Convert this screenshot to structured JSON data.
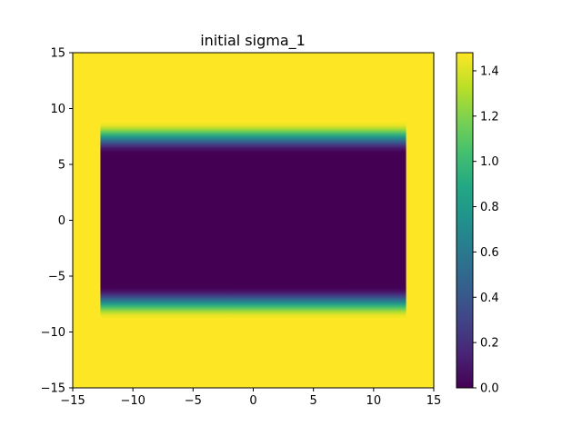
{
  "chart_data": {
    "type": "heatmap",
    "title": "initial sigma_1",
    "xlabel": "",
    "ylabel": "",
    "xlim": [
      -15,
      15
    ],
    "ylim": [
      -15,
      15
    ],
    "xticks": [
      -15,
      -10,
      -5,
      0,
      5,
      10,
      15
    ],
    "yticks": [
      -15,
      -10,
      -5,
      0,
      5,
      10,
      15
    ],
    "xtick_labels": [
      "−15",
      "−10",
      "−5",
      "0",
      "5",
      "10",
      "15"
    ],
    "ytick_labels": [
      "−15",
      "−10",
      "−5",
      "0",
      "5",
      "10",
      "15"
    ],
    "colormap": "viridis",
    "grid": false,
    "field": {
      "background_value": 1.48,
      "band_x_range": [
        -12.7,
        12.7
      ],
      "band_y_range": [
        -10.2,
        10.2
      ],
      "low_value": 0.0,
      "low_y_range": [
        -6.0,
        6.0
      ],
      "transition_width": 2.8
    },
    "colorbar": {
      "range": [
        0.0,
        1.48
      ],
      "ticks": [
        0.0,
        0.2,
        0.4,
        0.6,
        0.8,
        1.0,
        1.2,
        1.4
      ],
      "tick_labels": [
        "0.0",
        "0.2",
        "0.4",
        "0.6",
        "0.8",
        "1.0",
        "1.2",
        "1.4"
      ]
    }
  }
}
